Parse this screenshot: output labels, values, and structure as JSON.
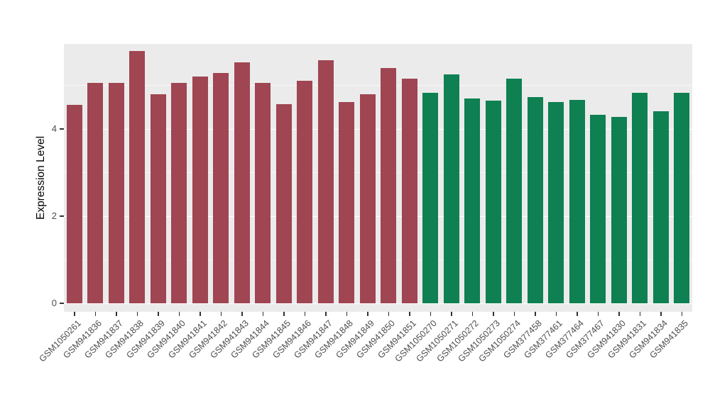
{
  "chart_data": {
    "type": "bar",
    "title": "",
    "xlabel": "",
    "ylabel": "Expression Level",
    "ylim": [
      0,
      6
    ],
    "yticks": [
      0,
      2,
      4
    ],
    "yticks_minor": [
      1,
      3,
      5
    ],
    "grid": "on",
    "legend": "none",
    "group_colors": {
      "red": "#A04552",
      "green": "#0E8052"
    },
    "bars": [
      {
        "label": "GSM1050261",
        "value": 4.55,
        "group": "red"
      },
      {
        "label": "GSM941836",
        "value": 5.05,
        "group": "red"
      },
      {
        "label": "GSM941837",
        "value": 5.05,
        "group": "red"
      },
      {
        "label": "GSM941838",
        "value": 5.78,
        "group": "red"
      },
      {
        "label": "GSM941839",
        "value": 4.8,
        "group": "red"
      },
      {
        "label": "GSM941840",
        "value": 5.05,
        "group": "red"
      },
      {
        "label": "GSM941841",
        "value": 5.2,
        "group": "red"
      },
      {
        "label": "GSM941842",
        "value": 5.28,
        "group": "red"
      },
      {
        "label": "GSM941843",
        "value": 5.52,
        "group": "red"
      },
      {
        "label": "GSM941844",
        "value": 5.05,
        "group": "red"
      },
      {
        "label": "GSM941845",
        "value": 4.57,
        "group": "red"
      },
      {
        "label": "GSM941846",
        "value": 5.1,
        "group": "red"
      },
      {
        "label": "GSM941847",
        "value": 5.57,
        "group": "red"
      },
      {
        "label": "GSM941848",
        "value": 4.62,
        "group": "red"
      },
      {
        "label": "GSM941849",
        "value": 4.8,
        "group": "red"
      },
      {
        "label": "GSM941850",
        "value": 5.4,
        "group": "red"
      },
      {
        "label": "GSM941851",
        "value": 5.15,
        "group": "red"
      },
      {
        "label": "GSM1050270",
        "value": 4.82,
        "group": "green"
      },
      {
        "label": "GSM1050271",
        "value": 5.25,
        "group": "green"
      },
      {
        "label": "GSM1050272",
        "value": 4.7,
        "group": "green"
      },
      {
        "label": "GSM1050273",
        "value": 4.65,
        "group": "green"
      },
      {
        "label": "GSM1050274",
        "value": 5.15,
        "group": "green"
      },
      {
        "label": "GSM377458",
        "value": 4.73,
        "group": "green"
      },
      {
        "label": "GSM377461",
        "value": 4.62,
        "group": "green"
      },
      {
        "label": "GSM377464",
        "value": 4.67,
        "group": "green"
      },
      {
        "label": "GSM377467",
        "value": 4.33,
        "group": "green"
      },
      {
        "label": "GSM941830",
        "value": 4.28,
        "group": "green"
      },
      {
        "label": "GSM941831",
        "value": 4.82,
        "group": "green"
      },
      {
        "label": "GSM941834",
        "value": 4.4,
        "group": "green"
      },
      {
        "label": "GSM941835",
        "value": 4.82,
        "group": "green"
      }
    ]
  }
}
